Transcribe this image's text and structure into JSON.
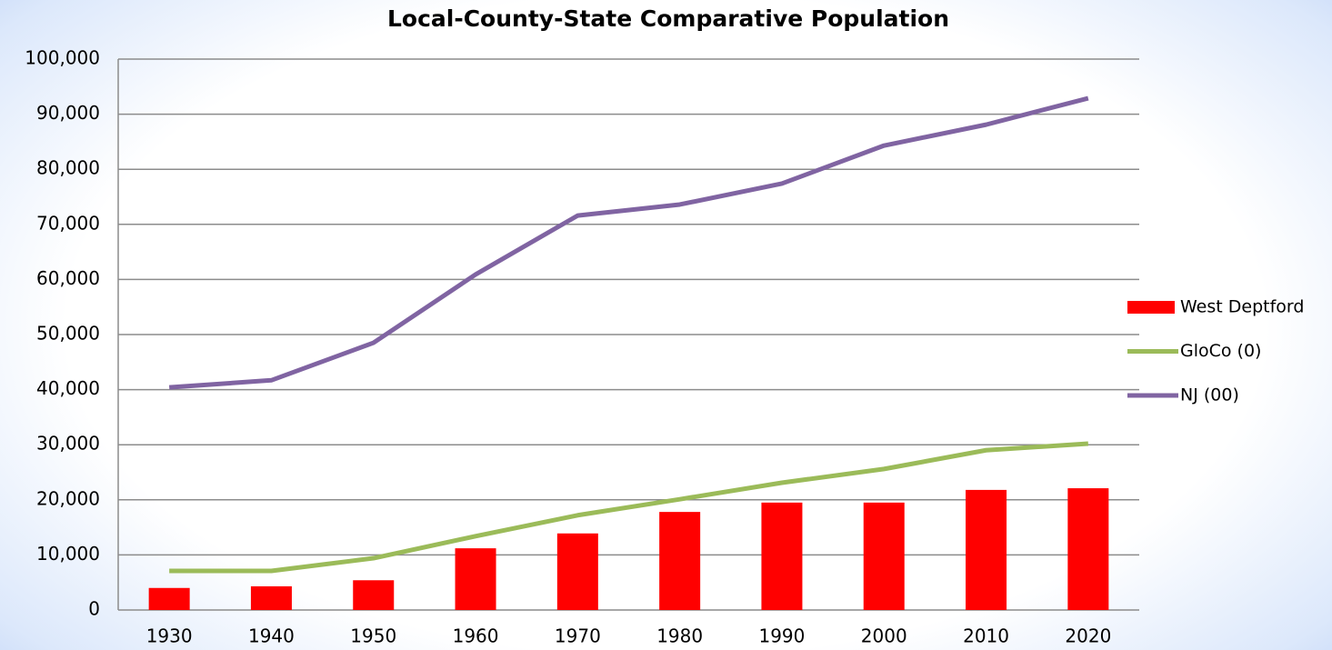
{
  "chart_data": {
    "type": "bar",
    "title": "Local-County-State Comparative Population",
    "categories": [
      "1930",
      "1940",
      "1950",
      "1960",
      "1970",
      "1980",
      "1990",
      "2000",
      "2010",
      "2020"
    ],
    "series": [
      {
        "name": "West Deptford",
        "type": "bar",
        "color": "#ff0000",
        "values": [
          4000,
          4300,
          5400,
          11200,
          13900,
          17800,
          19500,
          19500,
          21800,
          22100
        ]
      },
      {
        "name": "GloCo (0)",
        "type": "line",
        "color": "#9bbb59",
        "values": [
          7100,
          7100,
          9400,
          13400,
          17200,
          20100,
          23100,
          25600,
          29000,
          30200
        ]
      },
      {
        "name": "NJ (00)",
        "type": "line",
        "color": "#8064a2",
        "values": [
          40400,
          41700,
          48500,
          60900,
          71600,
          73600,
          77400,
          84300,
          88100,
          92900
        ]
      }
    ],
    "ylim": [
      0,
      100000
    ],
    "yticks": [
      0,
      {
        "value": 10000,
        "label": "10,000"
      },
      {
        "value": 20000,
        "label": "20,000"
      },
      {
        "value": 30000,
        "label": "30,000"
      },
      {
        "value": 40000,
        "label": "40,000"
      },
      {
        "value": 50000,
        "label": "50,000"
      },
      {
        "value": 60000,
        "label": "60,000"
      },
      {
        "value": 70000,
        "label": "70,000"
      },
      {
        "value": 80000,
        "label": "80,000"
      },
      {
        "value": 90000,
        "label": "90,000"
      },
      {
        "value": 100000,
        "label": "100,000"
      }
    ],
    "grid": true,
    "legend": "right"
  }
}
